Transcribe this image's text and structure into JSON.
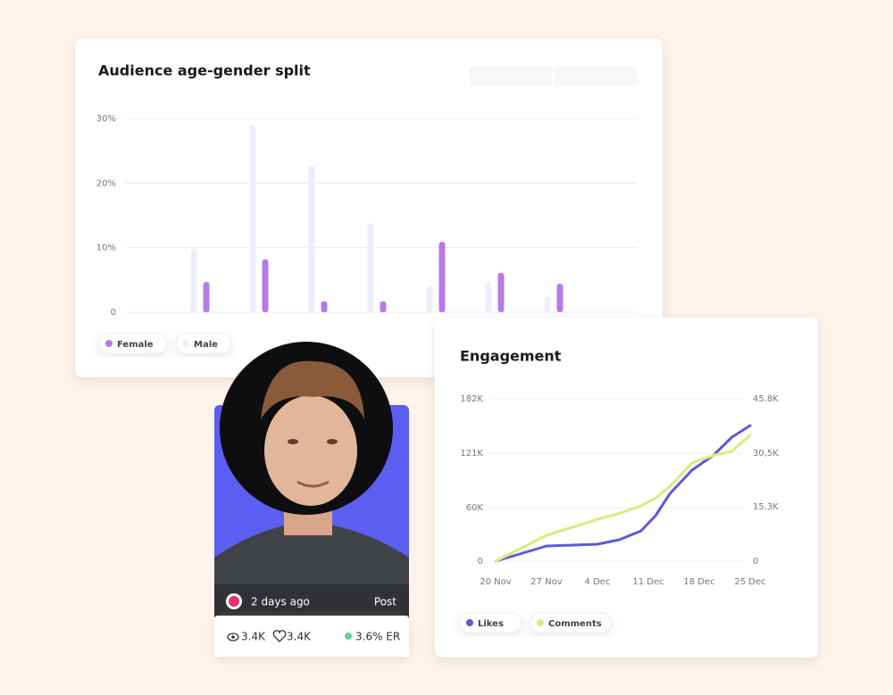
{
  "chart_data": [
    {
      "type": "bar",
      "title": "Audience age-gender split",
      "categories": [
        null,
        null,
        null,
        null,
        null,
        null,
        null
      ],
      "series": [
        {
          "name": "Female",
          "color": "#b67ae8",
          "values": [
            4.7,
            8.2,
            1.7,
            1.7,
            10.9,
            6.1,
            4.4
          ]
        },
        {
          "name": "Male",
          "color": "#eceefc",
          "values": [
            9.8,
            28.9,
            22.7,
            13.8,
            4.0,
            4.6,
            2.4
          ]
        }
      ],
      "ylim": [
        0,
        30
      ],
      "yticks": [
        0,
        {
          "value": 10,
          "label": "10%"
        },
        {
          "value": 20,
          "label": "20%"
        },
        {
          "value": 30,
          "label": "30%"
        }
      ],
      "grid": true
    },
    {
      "type": "line",
      "title": "Engagement",
      "x": [
        0,
        7,
        14,
        17,
        20,
        22,
        24,
        27,
        30,
        32.5,
        35
      ],
      "xlim": [
        0,
        35
      ],
      "xticks": [
        {
          "value": 0,
          "label": "20 Nov"
        },
        {
          "value": 7,
          "label": "27 Nov"
        },
        {
          "value": 14,
          "label": "4 Dec"
        },
        {
          "value": 21,
          "label": "11 Dec"
        },
        {
          "value": 28,
          "label": "18 Dec"
        },
        {
          "value": 35,
          "label": "25 Dec"
        }
      ],
      "series": [
        {
          "name": "Likes",
          "color": "#5b5bd6",
          "values": [
            0,
            17000,
            19000,
            24000,
            34000,
            51000,
            76000,
            102000,
            119000,
            139000,
            152000
          ]
        },
        {
          "name": "Comments",
          "color": "#d9ec7c",
          "axis": "y2",
          "values": [
            0,
            7300,
            11800,
            13500,
            15600,
            17800,
            21100,
            27700,
            29900,
            31000,
            35500
          ]
        }
      ],
      "ylim": [
        0,
        182000
      ],
      "yticks": [
        0,
        {
          "value": 60000,
          "label": "60K"
        },
        {
          "value": 121000,
          "label": "121K"
        },
        {
          "value": 182000,
          "label": "182K"
        }
      ],
      "y2lim": [
        0,
        45800
      ],
      "y2ticks": [
        0,
        {
          "value": 15300,
          "label": "15.3K"
        },
        {
          "value": 30500,
          "label": "30,5K"
        },
        {
          "value": 45800,
          "label": "45.8K"
        }
      ],
      "grid": true
    }
  ],
  "post_card": {
    "time": "2 days ago",
    "kind": "Post",
    "views": "3.4K",
    "likes": "3.4K",
    "er": "3.6% ER"
  }
}
